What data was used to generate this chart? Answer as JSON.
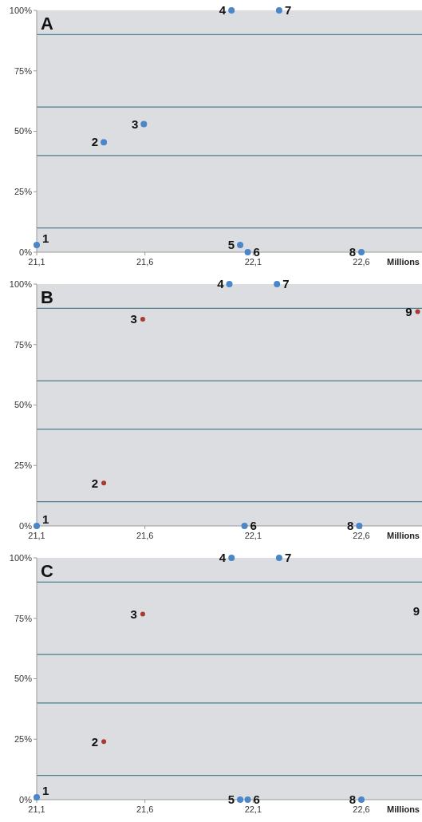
{
  "chart_data": [
    {
      "type": "scatter",
      "title": "A",
      "xlabel": "Millions",
      "xlim": [
        21.1,
        22.88
      ],
      "ylim": [
        0,
        100
      ],
      "xticks": [
        {
          "value": 21.1,
          "label": "21,1"
        },
        {
          "value": 21.6,
          "label": "21,6"
        },
        {
          "value": 22.1,
          "label": "22,1"
        },
        {
          "value": 22.6,
          "label": "22,6"
        }
      ],
      "yticks": [
        {
          "value": 0,
          "label": "0%"
        },
        {
          "value": 25,
          "label": "25%"
        },
        {
          "value": 50,
          "label": "50%"
        },
        {
          "value": 75,
          "label": "75%"
        },
        {
          "value": 100,
          "label": "100%"
        }
      ],
      "grid": false,
      "marker": "circle",
      "series": [
        {
          "color": "#4a86c8",
          "x": [
            21.1,
            21.41,
            21.595,
            22.0,
            22.04,
            22.075,
            22.22,
            22.6
          ],
          "values": [
            3,
            45.5,
            53,
            100,
            3,
            0,
            100,
            0
          ]
        }
      ],
      "ref_lines": [
        {
          "axis": "y",
          "value": 10,
          "color": "#4a7f8f"
        },
        {
          "axis": "y",
          "value": 40,
          "color": "#4a7f8f"
        },
        {
          "axis": "y",
          "value": 60,
          "color": "#4a7f8f"
        },
        {
          "axis": "y",
          "value": 90,
          "color": "#4a7f8f"
        }
      ],
      "annotations": [
        {
          "text": "1",
          "x": 21.1,
          "y": 3
        },
        {
          "text": "2",
          "x": 21.41,
          "y": 45.5
        },
        {
          "text": "3",
          "x": 21.595,
          "y": 53
        },
        {
          "text": "4",
          "x": 22.0,
          "y": 100
        },
        {
          "text": "5",
          "x": 22.04,
          "y": 3
        },
        {
          "text": "6",
          "x": 22.075,
          "y": 0
        },
        {
          "text": "7",
          "x": 22.22,
          "y": 100
        },
        {
          "text": "8",
          "x": 22.6,
          "y": 0
        }
      ]
    },
    {
      "type": "scatter",
      "title": "B",
      "xlabel": "Millions",
      "xlim": [
        21.1,
        22.88
      ],
      "ylim": [
        0,
        100
      ],
      "xticks": [
        {
          "value": 21.1,
          "label": "21,1"
        },
        {
          "value": 21.6,
          "label": "21,6"
        },
        {
          "value": 22.1,
          "label": "22,1"
        },
        {
          "value": 22.6,
          "label": "22,6"
        }
      ],
      "yticks": [
        {
          "value": 0,
          "label": "0%"
        },
        {
          "value": 25,
          "label": "25%"
        },
        {
          "value": 50,
          "label": "50%"
        },
        {
          "value": 75,
          "label": "75%"
        },
        {
          "value": 100,
          "label": "100%"
        }
      ],
      "grid": false,
      "marker": "circle",
      "series": [
        {
          "color": "#4a86c8",
          "x": [
            21.1,
            21.99,
            22.06,
            22.21,
            22.59
          ],
          "values": [
            0,
            100,
            0,
            100,
            0
          ]
        },
        {
          "color": "#a83a32",
          "x": [
            21.41,
            21.59,
            22.86
          ],
          "values": [
            17.7,
            85.5,
            88.6
          ]
        }
      ],
      "ref_lines": [
        {
          "axis": "y",
          "value": 10,
          "color": "#4a7f8f"
        },
        {
          "axis": "y",
          "value": 40,
          "color": "#4a7f8f"
        },
        {
          "axis": "y",
          "value": 60,
          "color": "#4a7f8f"
        },
        {
          "axis": "y",
          "value": 90,
          "color": "#4a7f8f"
        }
      ],
      "annotations": [
        {
          "text": "1",
          "x": 21.1,
          "y": 0
        },
        {
          "text": "2",
          "x": 21.41,
          "y": 17.7
        },
        {
          "text": "3",
          "x": 21.59,
          "y": 85.5
        },
        {
          "text": "4",
          "x": 21.99,
          "y": 100
        },
        {
          "text": "6",
          "x": 22.06,
          "y": 0
        },
        {
          "text": "7",
          "x": 22.21,
          "y": 100
        },
        {
          "text": "8",
          "x": 22.59,
          "y": 0
        },
        {
          "text": "9",
          "x": 22.86,
          "y": 88.6
        }
      ]
    },
    {
      "type": "scatter",
      "title": "C",
      "xlabel": "Millions",
      "xlim": [
        21.1,
        22.88
      ],
      "ylim": [
        0,
        100
      ],
      "xticks": [
        {
          "value": 21.1,
          "label": "21,1"
        },
        {
          "value": 21.6,
          "label": "21,6"
        },
        {
          "value": 22.1,
          "label": "22,1"
        },
        {
          "value": 22.6,
          "label": "22,6"
        }
      ],
      "yticks": [
        {
          "value": 0,
          "label": "0%"
        },
        {
          "value": 25,
          "label": "25%"
        },
        {
          "value": 50,
          "label": "50%"
        },
        {
          "value": 75,
          "label": "75%"
        },
        {
          "value": 100,
          "label": "100%"
        }
      ],
      "grid": false,
      "marker": "circle",
      "series": [
        {
          "color": "#4a86c8",
          "x": [
            21.1,
            22.0,
            22.04,
            22.075,
            22.22,
            22.6
          ],
          "values": [
            1,
            100,
            0,
            0,
            100,
            0
          ]
        },
        {
          "color": "#a83a32",
          "x": [
            21.41,
            21.59
          ],
          "values": [
            24,
            76.7
          ]
        }
      ],
      "ref_lines": [
        {
          "axis": "y",
          "value": 10,
          "color": "#4a7f8f"
        },
        {
          "axis": "y",
          "value": 40,
          "color": "#4a7f8f"
        },
        {
          "axis": "y",
          "value": 60,
          "color": "#4a7f8f"
        },
        {
          "axis": "y",
          "value": 90,
          "color": "#4a7f8f"
        }
      ],
      "annotations": [
        {
          "text": "1",
          "x": 21.1,
          "y": 1
        },
        {
          "text": "2",
          "x": 21.41,
          "y": 24
        },
        {
          "text": "3",
          "x": 21.59,
          "y": 76.7
        },
        {
          "text": "4",
          "x": 22.0,
          "y": 100
        },
        {
          "text": "5",
          "x": 22.04,
          "y": 0
        },
        {
          "text": "6",
          "x": 22.075,
          "y": 0
        },
        {
          "text": "7",
          "x": 22.22,
          "y": 100
        },
        {
          "text": "8",
          "x": 22.6,
          "y": 0
        },
        "9"
      ]
    }
  ]
}
